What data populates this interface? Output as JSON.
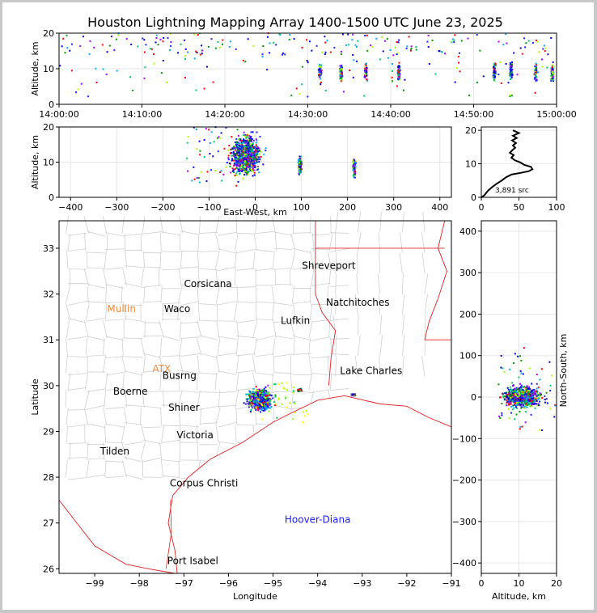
{
  "title": "Houston Lightning Mapping Array 1400-1500 UTC June 23, 2025",
  "colors": {
    "border": "#000000",
    "county": "#c8c8c8",
    "state": "#e02020",
    "coast": "#e02020",
    "orange": "#f08a3c",
    "blue": "#1a1aff"
  },
  "chart_data": [
    {
      "type": "scatter",
      "name": "time-altitude",
      "xlabel": "",
      "ylabel": "Altitude, km",
      "xticks": [
        "14:00:00",
        "14:10:00",
        "14:20:00",
        "14:30:00",
        "14:40:00",
        "14:50:00",
        "15:00:00"
      ],
      "xlim": [
        0,
        60
      ],
      "yticks": [
        "0",
        "10",
        "20"
      ],
      "ylim": [
        0,
        20
      ],
      "clusters": [
        {
          "t": 31.5,
          "alt": 9.5
        },
        {
          "t": 34.0,
          "alt": 9.0
        },
        {
          "t": 37.0,
          "alt": 9.0
        },
        {
          "t": 41.0,
          "alt": 9.0
        },
        {
          "t": 52.5,
          "alt": 9.0
        },
        {
          "t": 54.5,
          "alt": 9.5
        },
        {
          "t": 57.5,
          "alt": 9.0
        },
        {
          "t": 59.5,
          "alt": 9.0
        }
      ]
    },
    {
      "type": "scatter",
      "name": "east-west-altitude",
      "xlabel": "East-West, km",
      "ylabel": "Altitude, km",
      "xticks": [
        "−400",
        "−300",
        "−200",
        "−100",
        "0",
        "100",
        "200",
        "300",
        "400"
      ],
      "xlim": [
        -425,
        425
      ],
      "yticks": [
        "0",
        "10",
        "20"
      ],
      "ylim": [
        0,
        20
      ],
      "clusters": [
        {
          "x": -20,
          "alt": 12
        },
        {
          "x": 97,
          "alt": 9
        },
        {
          "x": 215,
          "alt": 8.5
        }
      ]
    },
    {
      "type": "line",
      "name": "altitude-histogram",
      "xticks": [
        "0",
        "50",
        "100"
      ],
      "xlim": [
        0,
        100
      ],
      "yticks": [
        "0",
        "10",
        "20"
      ],
      "ylim": [
        0,
        21
      ],
      "annotation": "3,891 src",
      "series": [
        {
          "points": [
            [
              0,
              0
            ],
            [
              4,
              0.6
            ],
            [
              6,
              1.2
            ],
            [
              9,
              2
            ],
            [
              14,
              3
            ],
            [
              20,
              4
            ],
            [
              27,
              5
            ],
            [
              33,
              6
            ],
            [
              40,
              6.8
            ],
            [
              52,
              7.3
            ],
            [
              63,
              7.8
            ],
            [
              68,
              8.4
            ],
            [
              66,
              9.1
            ],
            [
              57,
              9.7
            ],
            [
              52,
              10.4
            ],
            [
              45,
              11
            ],
            [
              40,
              11.8
            ],
            [
              43,
              12.6
            ],
            [
              38,
              13.3
            ],
            [
              41,
              14
            ],
            [
              45,
              14.8
            ],
            [
              42,
              15.5
            ],
            [
              46,
              16.2
            ],
            [
              41,
              17
            ],
            [
              47,
              17.7
            ],
            [
              42,
              18.4
            ],
            [
              50,
              19.2
            ],
            [
              42,
              20
            ]
          ]
        }
      ]
    },
    {
      "type": "scatter",
      "name": "plan-view-map",
      "xlabel": "Longitude",
      "ylabel": "Latitude",
      "xticks": [
        "−99",
        "−98",
        "−97",
        "−96",
        "−95",
        "−94",
        "−93",
        "−92",
        "−91"
      ],
      "xlim": [
        -99.8,
        -91.0
      ],
      "yticks": [
        "26",
        "27",
        "28",
        "29",
        "30",
        "31",
        "32",
        "33"
      ],
      "ylim": [
        25.9,
        33.6
      ],
      "clusters": [
        {
          "lon": -95.3,
          "lat": 29.7
        },
        {
          "lon": -94.4,
          "lat": 29.9
        },
        {
          "lon": -93.2,
          "lat": 29.8
        }
      ],
      "labels": [
        {
          "text": "Shreveport",
          "lon": -93.75,
          "lat": 32.55,
          "color": "#000000"
        },
        {
          "text": "Corsicana",
          "lon": -96.46,
          "lat": 32.15,
          "color": "#000000"
        },
        {
          "text": "Natchitoches",
          "lon": -93.1,
          "lat": 31.75,
          "color": "#000000"
        },
        {
          "text": "Mullin",
          "lon": -98.4,
          "lat": 31.6,
          "color": "#f08a3c"
        },
        {
          "text": "Waco",
          "lon": -97.15,
          "lat": 31.6,
          "color": "#000000"
        },
        {
          "text": "Lufkin",
          "lon": -94.5,
          "lat": 31.35,
          "color": "#000000"
        },
        {
          "text": "ATX",
          "lon": -97.5,
          "lat": 30.3,
          "color": "#f08a3c"
        },
        {
          "text": "Boerne",
          "lon": -98.2,
          "lat": 29.8,
          "color": "#000000"
        },
        {
          "text": "Busrng",
          "lon": -97.1,
          "lat": 30.15,
          "color": "#000000"
        },
        {
          "text": "Lake Charles",
          "lon": -92.8,
          "lat": 30.25,
          "color": "#000000"
        },
        {
          "text": "Shiner",
          "lon": -97.0,
          "lat": 29.45,
          "color": "#000000"
        },
        {
          "text": "Victoria",
          "lon": -96.75,
          "lat": 28.85,
          "color": "#000000"
        },
        {
          "text": "Tilden",
          "lon": -98.55,
          "lat": 28.5,
          "color": "#000000"
        },
        {
          "text": "Corpus Christi",
          "lon": -96.55,
          "lat": 27.8,
          "color": "#000000"
        },
        {
          "text": "Hoover-Diana",
          "lon": -94.0,
          "lat": 27.0,
          "color": "#1a1aff"
        },
        {
          "text": "Port Isabel",
          "lon": -96.8,
          "lat": 26.1,
          "color": "#000000"
        }
      ]
    },
    {
      "type": "scatter",
      "name": "altitude-north-south",
      "xlabel": "Altitude, km",
      "ylabel": "North-South, km",
      "xticks": [
        "0",
        "10",
        "20"
      ],
      "xlim": [
        0,
        20
      ],
      "yticks": [
        "−400",
        "−300",
        "−200",
        "−100",
        "0",
        "100",
        "200",
        "300",
        "400"
      ],
      "ylim": [
        -425,
        425
      ],
      "clusters": [
        {
          "alt": 10,
          "y": 0
        }
      ]
    }
  ]
}
